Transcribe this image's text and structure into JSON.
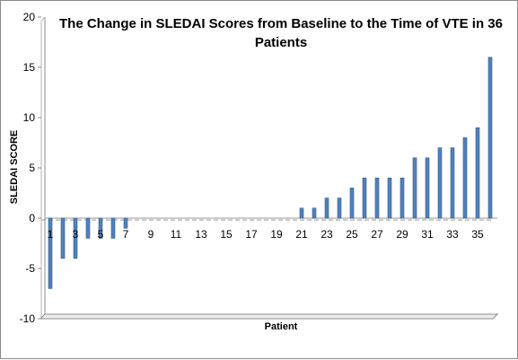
{
  "chart_data": {
    "type": "bar",
    "title_lines": [
      "The Change in SLEDAI Scores from Baseline to the Time of VTE in 36",
      "Patients"
    ],
    "xlabel": "Patient",
    "ylabel": "SLEDAI SCORE",
    "ylim": [
      -10,
      20
    ],
    "yticks": [
      -10,
      -5,
      0,
      5,
      10,
      15,
      20
    ],
    "categories": [
      1,
      2,
      3,
      4,
      5,
      6,
      7,
      8,
      9,
      10,
      11,
      12,
      13,
      14,
      15,
      16,
      17,
      18,
      19,
      20,
      21,
      22,
      23,
      24,
      25,
      26,
      27,
      28,
      29,
      30,
      31,
      32,
      33,
      34,
      35,
      36
    ],
    "xtick_labels": [
      1,
      3,
      5,
      7,
      9,
      11,
      13,
      15,
      17,
      19,
      21,
      23,
      25,
      27,
      29,
      31,
      33,
      35
    ],
    "values": [
      -7,
      -4,
      -4,
      -2,
      -2,
      -2,
      -1,
      0,
      0,
      0,
      0,
      0,
      0,
      0,
      0,
      0,
      0,
      0,
      0,
      0,
      1,
      1,
      2,
      2,
      3,
      4,
      4,
      4,
      4,
      6,
      6,
      7,
      7,
      8,
      9,
      16
    ],
    "bar_color": "#4f81bd",
    "bar_edge_color": "#385d8a",
    "grid": false,
    "legend": "none"
  }
}
